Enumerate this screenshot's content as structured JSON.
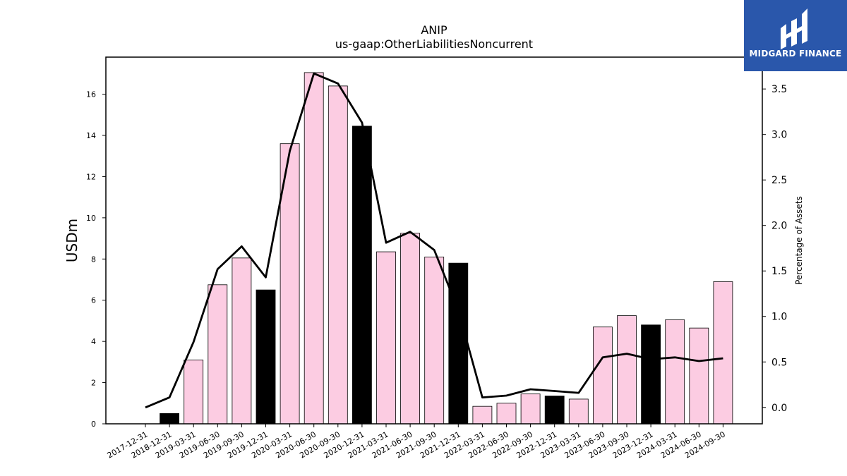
{
  "brand": {
    "name": "MIDGARD FINANCE",
    "color": "#2a57ab"
  },
  "chart_data": {
    "type": "bar",
    "title": "ANIP",
    "subtitle": "us-gaap:OtherLiabilitiesNoncurrent",
    "ylabel": "USDm",
    "y2label": "Percentage of Assets",
    "ylim": [
      0,
      17.8
    ],
    "y2lim": [
      -0.18,
      3.85
    ],
    "yticks": [
      0,
      2,
      4,
      6,
      8,
      10,
      12,
      14,
      16
    ],
    "y2ticks": [
      0.0,
      0.5,
      1.0,
      1.5,
      2.0,
      2.5,
      3.0,
      3.5
    ],
    "y2tick_labels": [
      "0.0",
      "0.5",
      "1.0",
      "1.5",
      "2.0",
      "2.5",
      "3.0",
      "3.5"
    ],
    "grid": false,
    "categories": [
      "2017-12-31",
      "2018-12-31",
      "2019-03-31",
      "2019-06-30",
      "2019-09-30",
      "2019-12-31",
      "2020-03-31",
      "2020-06-30",
      "2020-09-30",
      "2020-12-31",
      "2021-03-31",
      "2021-06-30",
      "2021-09-30",
      "2021-12-31",
      "2022-03-31",
      "2022-06-30",
      "2022-09-30",
      "2022-12-31",
      "2023-03-31",
      "2023-06-30",
      "2023-09-30",
      "2023-12-31",
      "2024-03-31",
      "2024-06-30",
      "2024-09-30"
    ],
    "series": [
      {
        "type": "bar",
        "values": [
          0,
          0.5,
          3.1,
          6.75,
          8.05,
          6.5,
          13.6,
          17.05,
          16.4,
          14.45,
          8.35,
          9.25,
          8.1,
          7.8,
          0.85,
          1.0,
          1.45,
          1.35,
          1.2,
          4.7,
          5.25,
          4.8,
          5.05,
          4.65,
          6.9
        ],
        "colors": [
          "#000000",
          "#000000",
          "#fccce2",
          "#fccce2",
          "#fccce2",
          "#000000",
          "#fccce2",
          "#fccce2",
          "#fccce2",
          "#000000",
          "#fccce2",
          "#fccce2",
          "#fccce2",
          "#000000",
          "#fccce2",
          "#fccce2",
          "#fccce2",
          "#000000",
          "#fccce2",
          "#fccce2",
          "#fccce2",
          "#000000",
          "#fccce2",
          "#fccce2",
          "#fccce2"
        ]
      },
      {
        "type": "line",
        "axis": "right",
        "color": "#000000",
        "values": [
          0.0,
          0.11,
          0.72,
          1.52,
          1.77,
          1.43,
          2.82,
          3.67,
          3.56,
          3.13,
          1.81,
          1.93,
          1.73,
          1.07,
          0.11,
          0.13,
          0.2,
          0.18,
          0.16,
          0.55,
          0.59,
          0.53,
          0.55,
          0.51,
          0.54
        ]
      }
    ]
  }
}
